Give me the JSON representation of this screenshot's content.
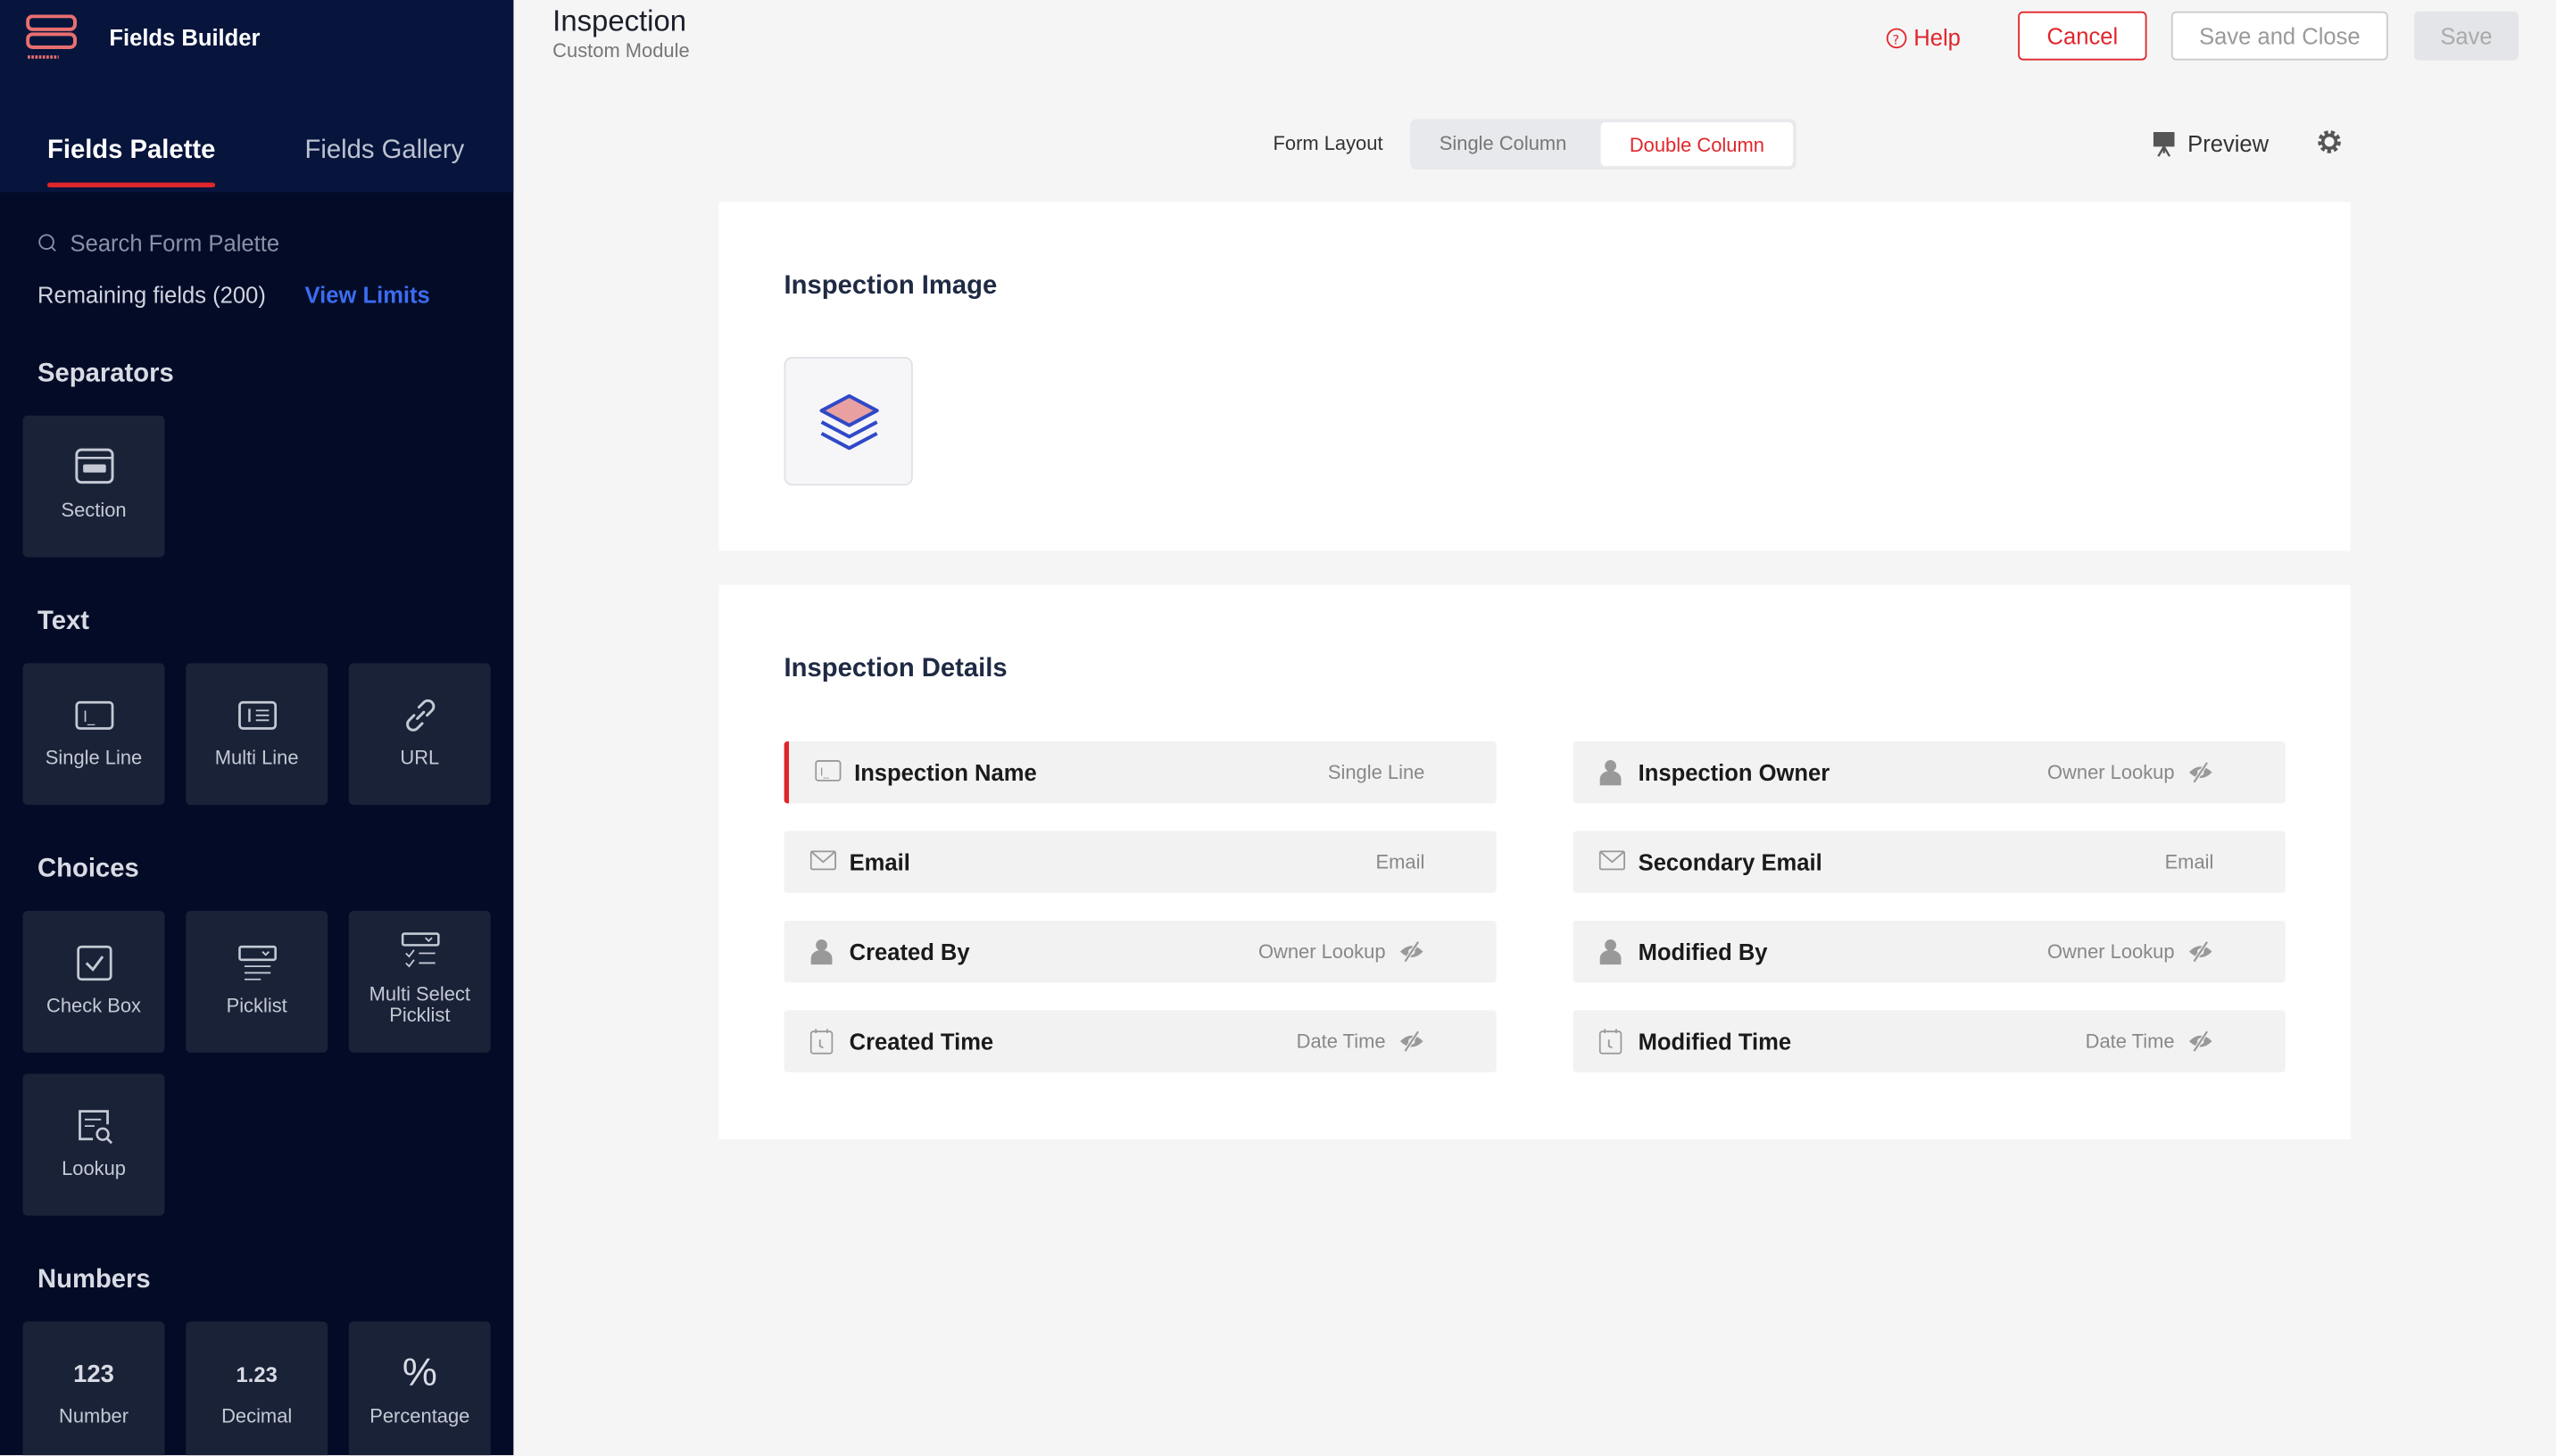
{
  "app": {
    "title": "Fields Builder",
    "brand_color": "#e0262b",
    "accent": "#3c6cf0"
  },
  "sidebar": {
    "tabs": [
      {
        "label": "Fields Palette",
        "active": true
      },
      {
        "label": "Fields Gallery",
        "active": false
      }
    ],
    "search_placeholder": "Search Form Palette",
    "remaining": "Remaining fields (200)",
    "view_limits": "View Limits",
    "groups": [
      {
        "title": "Separators",
        "items": [
          {
            "label": "Section",
            "icon": "section-icon"
          }
        ]
      },
      {
        "title": "Text",
        "items": [
          {
            "label": "Single Line",
            "icon": "single-line-icon"
          },
          {
            "label": "Multi Line",
            "icon": "multi-line-icon"
          },
          {
            "label": "URL",
            "icon": "link-icon"
          }
        ]
      },
      {
        "title": "Choices",
        "items": [
          {
            "label": "Check Box",
            "icon": "checkbox-icon"
          },
          {
            "label": "Picklist",
            "icon": "picklist-icon"
          },
          {
            "label": "Multi Select Picklist",
            "icon": "multi-picklist-icon"
          },
          {
            "label": "Lookup",
            "icon": "lookup-icon"
          }
        ]
      },
      {
        "title": "Numbers",
        "items": [
          {
            "label": "Number",
            "glyph": "123"
          },
          {
            "label": "Decimal",
            "glyph": "1.23"
          },
          {
            "label": "Percentage",
            "glyph": "%"
          }
        ]
      }
    ]
  },
  "header": {
    "title": "Inspection",
    "subtitle": "Custom Module",
    "help": "Help",
    "cancel": "Cancel",
    "save_close": "Save and Close",
    "save": "Save"
  },
  "layout": {
    "label": "Form Layout",
    "options": [
      "Single Column",
      "Double Column"
    ],
    "selected": "Double Column",
    "preview": "Preview"
  },
  "sections": [
    {
      "title": "Inspection Image"
    },
    {
      "title": "Inspection Details",
      "fields": [
        {
          "name": "Inspection Name",
          "type": "Single Line",
          "icon": "single-line-icon",
          "required": true,
          "hidden_icon": false
        },
        {
          "name": "Inspection Owner",
          "type": "Owner Lookup",
          "icon": "user-icon",
          "hidden_icon": true
        },
        {
          "name": "Email",
          "type": "Email",
          "icon": "mail-icon",
          "hidden_icon": false
        },
        {
          "name": "Secondary Email",
          "type": "Email",
          "icon": "mail-icon",
          "hidden_icon": false
        },
        {
          "name": "Created By",
          "type": "Owner Lookup",
          "icon": "user-icon",
          "hidden_icon": true
        },
        {
          "name": "Modified By",
          "type": "Owner Lookup",
          "icon": "user-icon",
          "hidden_icon": true
        },
        {
          "name": "Created Time",
          "type": "Date Time",
          "icon": "clock-icon",
          "hidden_icon": true
        },
        {
          "name": "Modified Time",
          "type": "Date Time",
          "icon": "clock-icon",
          "hidden_icon": true
        }
      ]
    }
  ]
}
